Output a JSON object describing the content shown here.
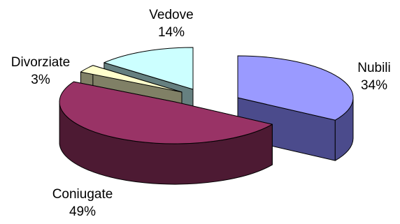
{
  "chart_data": {
    "type": "pie",
    "title": "",
    "legend": "none",
    "style": "3d-exploded",
    "slices": [
      {
        "name": "Nubili",
        "value": 34,
        "label": "34%",
        "top_color": "#9a9aff",
        "side_color": "#4b4b8c"
      },
      {
        "name": "Coniugate",
        "value": 49,
        "label": "49%",
        "top_color": "#993366",
        "side_color": "#4d1a33"
      },
      {
        "name": "Divorziate",
        "value": 3,
        "label": "3%",
        "top_color": "#ffffcc",
        "side_color": "#808066"
      },
      {
        "name": "Vedove",
        "value": 14,
        "label": "14%",
        "top_color": "#ccffff",
        "side_color": "#668080"
      }
    ]
  }
}
